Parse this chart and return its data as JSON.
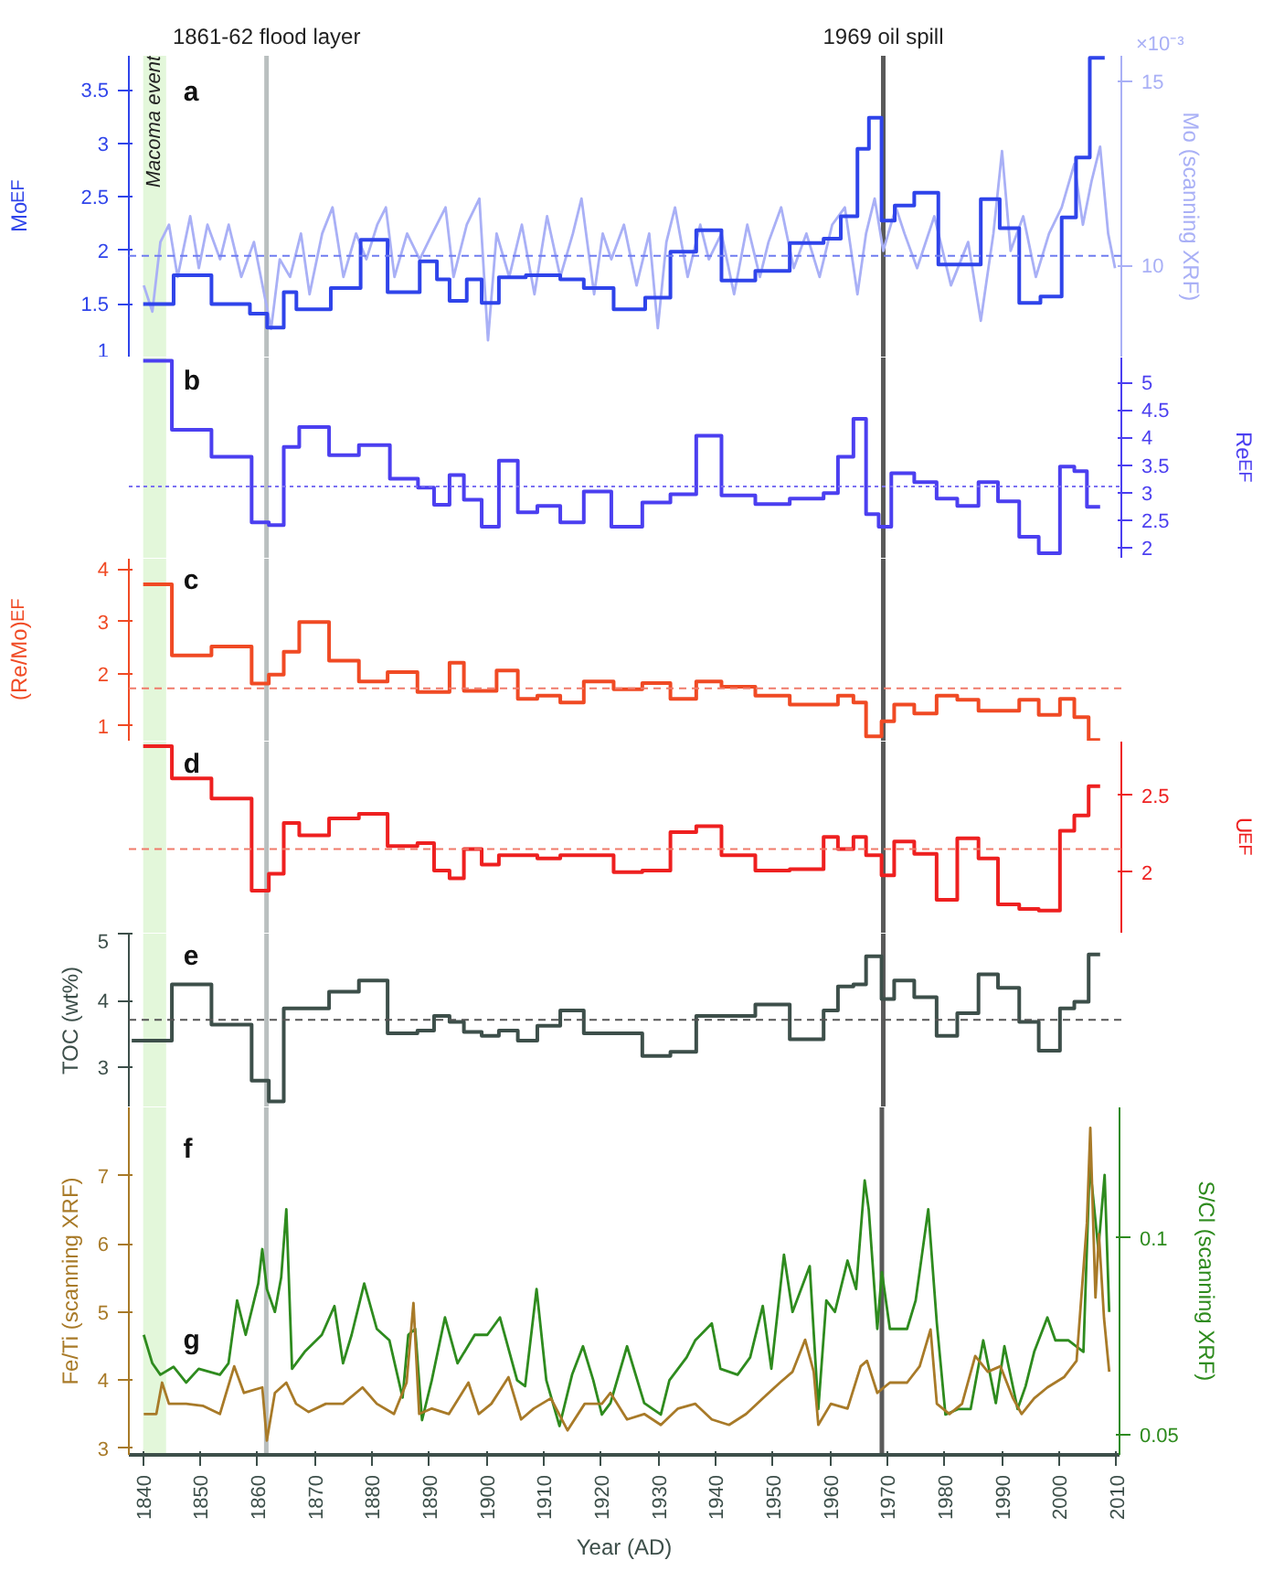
{
  "chart_data": [
    {
      "type": "step",
      "ylabel": "Mo$_{EF}$",
      "y2label": "Mo (scanning XRF)",
      "annotations": [
        "a",
        "×10⁻³"
      ],
      "xlim": [
        1837.5,
        2010.5
      ],
      "xticks": [
        1840,
        1850,
        1860,
        1870,
        1880,
        1890,
        1900,
        1910,
        1920,
        1930,
        1940,
        1950,
        1960,
        1970,
        1980,
        1990,
        2000,
        2010
      ],
      "ylim": [
        1.0,
        3.82
      ],
      "yticks": [
        1.0,
        1.5,
        2.0,
        2.5,
        3.0,
        3.5
      ],
      "y2lim": [
        7.5,
        15.7
      ],
      "y2ticks": [
        10,
        15
      ],
      "tick_labels": "y",
      "grid": false,
      "series": [
        {
          "type": "line",
          "color": "#a9b0f6",
          "axis": "y2",
          "x": [
            1840.1,
            1841.6,
            1843.0,
            1844.5,
            1846.0,
            1848.2,
            1849.7,
            1851.2,
            1853.4,
            1854.9,
            1857.1,
            1859.3,
            1861.1,
            1862.3,
            1863.8,
            1865.6,
            1867.5,
            1869.0,
            1871.2,
            1873.0,
            1874.9,
            1877.1,
            1878.9,
            1880.8,
            1882.3,
            1883.8,
            1886.0,
            1888.2,
            1890.4,
            1892.7,
            1894.1,
            1896.4,
            1898.6,
            1900.1,
            1901.6,
            1903.8,
            1906.0,
            1908.2,
            1910.4,
            1912.7,
            1914.9,
            1916.4,
            1918.6,
            1920.1,
            1921.6,
            1923.8,
            1926.0,
            1928.2,
            1929.7,
            1931.2,
            1932.7,
            1934.9,
            1937.1,
            1938.6,
            1940.8,
            1943.0,
            1945.3,
            1947.5,
            1949.0,
            1951.2,
            1953.4,
            1955.6,
            1957.9,
            1960.1,
            1962.3,
            1964.5,
            1966.0,
            1967.5,
            1969.0,
            1971.2,
            1972.7,
            1974.9,
            1977.9,
            1980.8,
            1983.8,
            1986.0,
            1988.2,
            1989.7,
            1991.2,
            1993.4,
            1995.6,
            1997.9,
            2000.1,
            2002.3,
            2003.8,
            2005.3,
            2006.8,
            2008.2,
            2009.4
          ],
          "values": [
            9.46,
            8.75,
            10.64,
            11.11,
            9.69,
            11.34,
            9.93,
            11.11,
            10.17,
            11.11,
            9.69,
            10.64,
            9.22,
            8.28,
            10.17,
            9.69,
            10.87,
            9.22,
            10.87,
            11.58,
            9.69,
            10.87,
            10.17,
            11.11,
            11.58,
            9.69,
            10.87,
            10.17,
            10.87,
            11.58,
            9.69,
            11.11,
            11.82,
            7.97,
            10.87,
            9.69,
            11.11,
            9.22,
            11.34,
            9.69,
            10.87,
            11.82,
            9.22,
            10.87,
            10.17,
            11.11,
            9.46,
            10.87,
            8.3,
            10.64,
            11.58,
            9.69,
            11.11,
            10.17,
            10.87,
            9.22,
            11.11,
            9.69,
            10.64,
            11.58,
            9.93,
            10.87,
            9.69,
            11.11,
            11.58,
            9.22,
            10.87,
            11.82,
            10.4,
            11.58,
            10.87,
            9.93,
            11.34,
            9.46,
            10.64,
            8.5,
            10.87,
            13.11,
            10.4,
            11.34,
            9.69,
            10.87,
            11.58,
            12.76,
            11.11,
            12.29,
            13.23,
            10.87,
            9.93
          ]
        },
        {
          "type": "step",
          "color": "#2f44ea",
          "x": [
            1840,
            1845.3,
            1851.9,
            1858.6,
            1861.6,
            1864.5,
            1866.7,
            1872.7,
            1877.9,
            1882.6,
            1888.2,
            1891.2,
            1893.4,
            1896.4,
            1899.0,
            1902.0,
            1906.7,
            1912.7,
            1916.8,
            1922.0,
            1927.5,
            1931.9,
            1936.4,
            1940.8,
            1946.7,
            1952.7,
            1958.6,
            1961.6,
            1964.5,
            1966.5,
            1968.7,
            1971.0,
            1974.4,
            1978.6,
            1986.0,
            1989.3,
            1992.7,
            1996.4,
            2000.1,
            2002.6,
            2005.0,
            2007.6
          ],
          "values": [
            1.5,
            1.77,
            1.5,
            1.41,
            1.28,
            1.61,
            1.45,
            1.65,
            2.1,
            1.61,
            1.9,
            1.73,
            1.53,
            1.73,
            1.51,
            1.75,
            1.77,
            1.73,
            1.65,
            1.45,
            1.56,
            1.99,
            2.19,
            1.72,
            1.81,
            2.07,
            2.11,
            2.32,
            2.95,
            3.24,
            2.28,
            2.42,
            2.54,
            1.87,
            2.48,
            2.21,
            1.51,
            1.57,
            2.31,
            2.87,
            3.8,
            3.8
          ]
        }
      ],
      "ref_lines": [
        {
          "axis": "x",
          "value": 1861.5,
          "label": "1861-62 flood layer",
          "color": "#b9bfbf"
        },
        {
          "axis": "x",
          "value": 1969,
          "label": "1969 oil spill",
          "color": "#5a5a5a"
        },
        {
          "axis": "y",
          "value": 1.95,
          "color": "#6f7cf0",
          "line_style": "dashed"
        }
      ],
      "bands": [
        {
          "axis": "x",
          "from": 1840,
          "to": 1844,
          "label": "Macoma event",
          "color": "#e3f7da"
        }
      ]
    },
    {
      "type": "step",
      "y2label": "Re$_{EF}$",
      "annotations": [
        "b"
      ],
      "xlim": [
        1837.5,
        2010.5
      ],
      "y2lim": [
        1.8,
        5.45
      ],
      "y2ticks": [
        2.0,
        2.5,
        3.0,
        3.5,
        4.0,
        4.5,
        5.0
      ],
      "tick_labels": "y",
      "grid": false,
      "series": [
        {
          "color": "#4b3ff0",
          "axis": "y2",
          "x": [
            1840,
            1845,
            1851.9,
            1858.9,
            1861.9,
            1864.5,
            1867.2,
            1872.4,
            1877.6,
            1883,
            1887.9,
            1890.7,
            1893.4,
            1895.9,
            1899,
            1902,
            1905.3,
            1908.7,
            1912.7,
            1916.8,
            1921.6,
            1927,
            1931.9,
            1936.4,
            1940.8,
            1946.7,
            1952.7,
            1958.6,
            1961.1,
            1963.8,
            1966,
            1968.2,
            1970.4,
            1974.4,
            1978.3,
            1981.9,
            1985.6,
            1989,
            1992.7,
            1996.1,
            1999.8,
            2002.3,
            2004.5,
            2006.8
          ],
          "values": [
            5.39,
            4.14,
            3.65,
            2.46,
            2.41,
            3.83,
            4.19,
            3.68,
            3.86,
            3.25,
            3.09,
            2.78,
            3.32,
            2.87,
            2.38,
            3.58,
            2.64,
            2.76,
            2.46,
            3.02,
            2.38,
            2.82,
            2.97,
            4.03,
            2.95,
            2.79,
            2.89,
            2.99,
            3.65,
            4.34,
            2.61,
            2.38,
            3.35,
            3.19,
            2.89,
            2.76,
            3.19,
            2.84,
            2.2,
            1.9,
            3.47,
            3.39,
            2.74,
            2.74
          ]
        }
      ],
      "ref_lines": [
        {
          "axis": "x",
          "value": 1861.5,
          "color": "#b9bfbf"
        },
        {
          "axis": "x",
          "value": 1969,
          "color": "#5a5a5a"
        },
        {
          "axis": "y2",
          "value": 3.11,
          "color": "#7a70f2",
          "line_style": "dotted"
        }
      ],
      "bands": [
        {
          "axis": "x",
          "from": 1840,
          "to": 1844,
          "color": "#e3f7da"
        }
      ]
    },
    {
      "type": "step",
      "ylabel": "(Re/Mo)$_{EF}$",
      "annotations": [
        "c"
      ],
      "xlim": [
        1837.5,
        2010.5
      ],
      "ylim": [
        0.7,
        4.2
      ],
      "yticks": [
        1,
        2,
        3,
        4
      ],
      "tick_labels": "y",
      "grid": false,
      "series": [
        {
          "color": "#f04a24",
          "x": [
            1840,
            1845,
            1851.9,
            1858.9,
            1861.9,
            1864.5,
            1867.2,
            1872.4,
            1877.6,
            1882.6,
            1887.8,
            1893.4,
            1895.9,
            1901.6,
            1905.3,
            1908.7,
            1912.7,
            1916.8,
            1922,
            1927,
            1931.9,
            1936.4,
            1940.8,
            1946.7,
            1952.7,
            1961.1,
            1963.8,
            1966,
            1968.7,
            1970.9,
            1974.4,
            1978.3,
            1981.9,
            1985.6,
            1992.7,
            1996.1,
            1999.8,
            2002.3,
            2004.8,
            2006.8
          ],
          "values": [
            3.71,
            2.35,
            2.52,
            1.81,
            1.98,
            2.42,
            2.99,
            2.25,
            1.85,
            2.03,
            1.65,
            2.21,
            1.67,
            2.06,
            1.52,
            1.58,
            1.45,
            1.85,
            1.7,
            1.82,
            1.52,
            1.85,
            1.75,
            1.58,
            1.41,
            1.58,
            1.45,
            0.8,
            1.09,
            1.41,
            1.24,
            1.58,
            1.5,
            1.29,
            1.5,
            1.21,
            1.52,
            1.17,
            0.73,
            0.73
          ]
        }
      ],
      "ref_lines": [
        {
          "axis": "x",
          "value": 1861.5,
          "color": "#b9bfbf"
        },
        {
          "axis": "x",
          "value": 1969,
          "color": "#5a5a5a"
        },
        {
          "axis": "y",
          "value": 1.72,
          "color": "#f07a6a",
          "line_style": "dashed"
        }
      ],
      "bands": [
        {
          "axis": "x",
          "from": 1840,
          "to": 1844,
          "color": "#e3f7da"
        }
      ]
    },
    {
      "type": "step",
      "y2label": "U$_{EF}$",
      "annotations": [
        "d"
      ],
      "xlim": [
        1837.5,
        2010.5
      ],
      "y2lim": [
        1.6,
        2.85
      ],
      "y2ticks": [
        2.0,
        2.5
      ],
      "tick_labels": "y",
      "grid": false,
      "series": [
        {
          "color": "#ee2020",
          "axis": "y2",
          "x": [
            1840,
            1845,
            1851.9,
            1858.9,
            1861.9,
            1864.5,
            1867.2,
            1872.4,
            1877.6,
            1882.6,
            1887.8,
            1890.7,
            1893.4,
            1895.9,
            1899,
            1902,
            1908.7,
            1912.7,
            1922,
            1927,
            1931.9,
            1936.4,
            1940.8,
            1946.7,
            1952.7,
            1958.6,
            1961.1,
            1963.8,
            1966,
            1968.7,
            1970.9,
            1974.4,
            1978.3,
            1981.9,
            1985.6,
            1989,
            1992.7,
            1996.1,
            1999.8,
            2002.3,
            2004.8,
            2006.8
          ],
          "values": [
            2.82,
            2.61,
            2.48,
            1.88,
            1.99,
            2.32,
            2.24,
            2.35,
            2.38,
            2.17,
            2.19,
            2.01,
            1.96,
            2.15,
            2.05,
            2.11,
            2.09,
            2.11,
            2.0,
            2.01,
            2.26,
            2.3,
            2.11,
            2.01,
            2.02,
            2.23,
            2.15,
            2.23,
            2.11,
            1.98,
            2.2,
            2.12,
            1.82,
            2.22,
            2.09,
            1.79,
            1.76,
            1.75,
            2.27,
            2.37,
            2.56,
            2.56
          ]
        }
      ],
      "ref_lines": [
        {
          "axis": "x",
          "value": 1861.5,
          "color": "#b9bfbf"
        },
        {
          "axis": "x",
          "value": 1969,
          "color": "#5a5a5a"
        },
        {
          "axis": "y2",
          "value": 2.15,
          "color": "#f07a6a",
          "line_style": "dashed"
        }
      ],
      "bands": [
        {
          "axis": "x",
          "from": 1840,
          "to": 1844,
          "color": "#e3f7da"
        }
      ]
    },
    {
      "type": "step",
      "ylabel": "TOC (wt%)",
      "annotations": [
        "e"
      ],
      "xlim": [
        1837.5,
        2010.5
      ],
      "ylim": [
        2.4,
        5.0
      ],
      "yticks": [
        3,
        4,
        5
      ],
      "tick_labels": "y",
      "grid": false,
      "series": [
        {
          "color": "#3d4f4a",
          "x": [
            1838,
            1845,
            1851.9,
            1858.9,
            1861.9,
            1864.5,
            1872.4,
            1877.6,
            1882.6,
            1887.8,
            1890.7,
            1893.4,
            1895.9,
            1899,
            1902,
            1905.3,
            1908.7,
            1912.7,
            1916.8,
            1927,
            1931.9,
            1936.4,
            1946.7,
            1952.7,
            1958.6,
            1961.1,
            1963.8,
            1966,
            1968.7,
            1970.9,
            1974.4,
            1978.3,
            1981.9,
            1985.6,
            1989,
            1992.7,
            1996.1,
            1999.8,
            2002.3,
            2004.8,
            2006.8
          ],
          "values": [
            3.4,
            4.24,
            3.64,
            2.8,
            2.49,
            3.88,
            4.13,
            4.3,
            3.51,
            3.55,
            3.77,
            3.68,
            3.53,
            3.47,
            3.55,
            3.4,
            3.62,
            3.85,
            3.51,
            3.17,
            3.23,
            3.77,
            3.94,
            3.42,
            3.85,
            4.21,
            4.24,
            4.66,
            4.02,
            4.3,
            4.05,
            3.47,
            3.81,
            4.39,
            4.19,
            3.68,
            3.25,
            3.88,
            3.98,
            4.69,
            4.69
          ]
        }
      ],
      "ref_lines": [
        {
          "axis": "x",
          "value": 1861.5,
          "color": "#b9bfbf"
        },
        {
          "axis": "x",
          "value": 1969,
          "color": "#5a5a5a"
        },
        {
          "axis": "y",
          "value": 3.71,
          "color": "#555555",
          "line_style": "dashed"
        }
      ],
      "bands": [
        {
          "axis": "x",
          "from": 1840,
          "to": 1844,
          "color": "#e3f7da"
        }
      ]
    },
    {
      "type": "line",
      "xlabel": "Year (AD)",
      "ylabel": "Fe/Ti (scanning XRF)",
      "y2label": "S/Cl (scanning XRF)",
      "annotations": [
        "f",
        "g"
      ],
      "xlim": [
        1837.5,
        2010.5
      ],
      "xticks": [
        1840,
        1850,
        1860,
        1870,
        1880,
        1890,
        1900,
        1910,
        1920,
        1930,
        1940,
        1950,
        1960,
        1970,
        1980,
        1990,
        2000,
        2010
      ],
      "ylim": [
        2.9,
        8.0
      ],
      "yticks": [
        3,
        4,
        5,
        6,
        7
      ],
      "y2lim": [
        0.045,
        0.133
      ],
      "y2ticks": [
        0.05,
        0.1
      ],
      "grid": false,
      "series": [
        {
          "color": "#2e8b1e",
          "axis": "y2",
          "x": [
            1840.1,
            1841.6,
            1843.0,
            1845.3,
            1847.5,
            1849.7,
            1853.4,
            1854.9,
            1856.4,
            1857.9,
            1860.1,
            1860.8,
            1861.6,
            1863.0,
            1864.1,
            1865.0,
            1866.0,
            1868.2,
            1871.2,
            1873.4,
            1874.9,
            1876.4,
            1878.6,
            1880.8,
            1883.0,
            1885.3,
            1886.3,
            1887.5,
            1888.7,
            1890.4,
            1892.7,
            1894.9,
            1897.9,
            1900.1,
            1902.3,
            1905.3,
            1906.7,
            1908.7,
            1910.4,
            1912.7,
            1914.9,
            1916.8,
            1918.6,
            1920.1,
            1921.6,
            1924.5,
            1927.5,
            1930.4,
            1931.9,
            1934.9,
            1936.4,
            1939.3,
            1940.8,
            1943.8,
            1946.0,
            1948.2,
            1949.7,
            1951.9,
            1953.4,
            1956.4,
            1957.9,
            1959.3,
            1960.8,
            1963.0,
            1964.5,
            1966.0,
            1966.7,
            1968.2,
            1969.0,
            1970.4,
            1973.4,
            1974.9,
            1977.1,
            1978.6,
            1980.1,
            1982.3,
            1984.5,
            1986.7,
            1988.9,
            1990.4,
            1992.7,
            1994.1,
            1995.6,
            1997.9,
            1999.3,
            2001.6,
            2004.2,
            2005.3,
            2006.8,
            2007.9,
            2008.7
          ],
          "values": [
            0.0754,
            0.0682,
            0.0653,
            0.0673,
            0.0633,
            0.0668,
            0.0653,
            0.0682,
            0.0841,
            0.0754,
            0.0884,
            0.0971,
            0.087,
            0.0812,
            0.0899,
            0.1072,
            0.0668,
            0.0711,
            0.0754,
            0.0827,
            0.0682,
            0.0754,
            0.0884,
            0.0769,
            0.074,
            0.0595,
            0.0754,
            0.0769,
            0.0538,
            0.0639,
            0.0798,
            0.0682,
            0.0754,
            0.0754,
            0.0798,
            0.0639,
            0.0624,
            0.087,
            0.0639,
            0.0523,
            0.0653,
            0.0725,
            0.0639,
            0.0552,
            0.0581,
            0.0725,
            0.0581,
            0.0552,
            0.0639,
            0.0697,
            0.074,
            0.0783,
            0.0668,
            0.0653,
            0.0697,
            0.0827,
            0.0668,
            0.0957,
            0.0812,
            0.0928,
            0.0566,
            0.0841,
            0.0812,
            0.0942,
            0.087,
            0.1145,
            0.1072,
            0.0769,
            0.0913,
            0.0769,
            0.0769,
            0.0841,
            0.1072,
            0.0783,
            0.0552,
            0.0566,
            0.0566,
            0.074,
            0.0581,
            0.0725,
            0.0566,
            0.0624,
            0.0711,
            0.0798,
            0.074,
            0.074,
            0.0711,
            0.1188,
            0.0971,
            0.1159,
            0.0812
          ]
        },
        {
          "color": "#a87a28",
          "x": [
            1840.1,
            1842.3,
            1843.3,
            1844.5,
            1847.5,
            1850.4,
            1853.4,
            1855.9,
            1857.6,
            1860.8,
            1861.6,
            1863.0,
            1865.0,
            1866.7,
            1868.9,
            1871.9,
            1874.9,
            1878.3,
            1880.8,
            1883.8,
            1886.0,
            1887.2,
            1888.2,
            1890.4,
            1893.4,
            1896.8,
            1898.6,
            1900.8,
            1903.8,
            1906.0,
            1908.2,
            1911.2,
            1914.1,
            1917.1,
            1920.1,
            1921.6,
            1924.5,
            1927.5,
            1930.4,
            1933.4,
            1936.4,
            1939.3,
            1942.3,
            1945.3,
            1948.2,
            1951.2,
            1953.4,
            1955.6,
            1957.1,
            1957.9,
            1960.1,
            1963.0,
            1965.3,
            1966.4,
            1968.2,
            1970.4,
            1973.4,
            1975.6,
            1977.5,
            1978.6,
            1980.8,
            1983.0,
            1985.3,
            1987.5,
            1989.7,
            1991.9,
            1993.4,
            1995.6,
            1997.9,
            2000.8,
            2003.0,
            2004.8,
            2005.4,
            2006.3,
            2006.9,
            2007.8,
            2008.7
          ],
          "values": [
            3.5,
            3.5,
            3.96,
            3.65,
            3.65,
            3.62,
            3.5,
            4.2,
            3.81,
            3.89,
            3.11,
            3.81,
            3.96,
            3.65,
            3.53,
            3.65,
            3.65,
            3.89,
            3.65,
            3.5,
            3.96,
            5.13,
            3.5,
            3.58,
            3.5,
            3.96,
            3.5,
            3.65,
            4.04,
            3.42,
            3.58,
            3.73,
            3.26,
            3.65,
            3.65,
            3.81,
            3.42,
            3.5,
            3.34,
            3.58,
            3.65,
            3.42,
            3.34,
            3.5,
            3.73,
            3.96,
            4.12,
            4.59,
            4.12,
            3.34,
            3.65,
            3.58,
            4.2,
            4.28,
            3.81,
            3.96,
            3.96,
            4.2,
            4.74,
            3.65,
            3.5,
            3.65,
            4.35,
            4.12,
            4.2,
            3.73,
            3.5,
            3.73,
            3.89,
            4.04,
            4.28,
            6.3,
            7.7,
            5.21,
            6.14,
            4.9,
            4.12
          ]
        }
      ],
      "ref_lines": [
        {
          "axis": "x",
          "value": 1861.5,
          "color": "#b9bfbf"
        },
        {
          "axis": "x",
          "value": 1969,
          "color": "#5a5a5a"
        }
      ],
      "bands": [
        {
          "axis": "x",
          "from": 1840,
          "to": 1844,
          "color": "#e3f7da"
        }
      ]
    }
  ]
}
